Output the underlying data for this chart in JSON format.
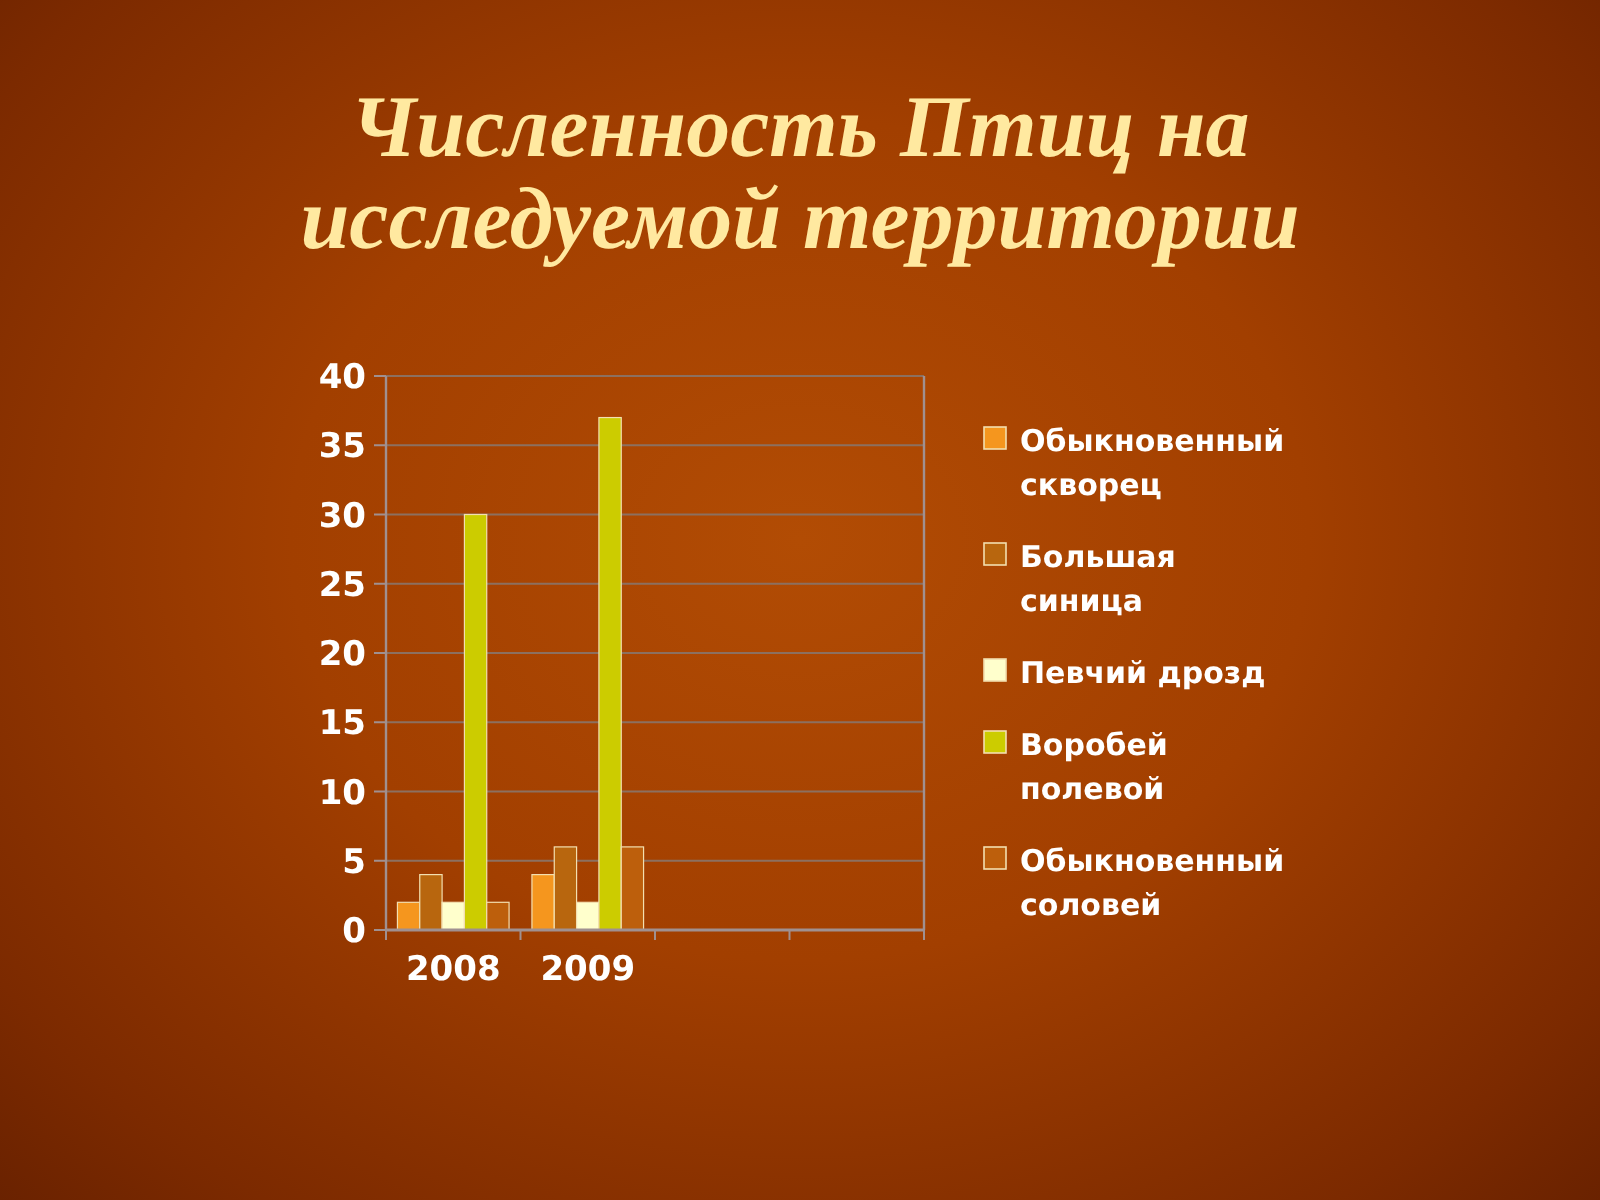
{
  "chart_data": {
    "type": "bar",
    "title": "Численность Птиц на исследуемой территории",
    "categories": [
      "2008",
      "2009",
      null,
      null
    ],
    "series": [
      {
        "name": "Обыкновенный скворец",
        "color": "#f5961e",
        "values": [
          2,
          4,
          null,
          null
        ]
      },
      {
        "name": "Большая синица",
        "color": "#b8660e",
        "values": [
          4,
          6,
          null,
          null
        ]
      },
      {
        "name": "Певчий дрозд",
        "color": "#ffffcc",
        "values": [
          2,
          2,
          null,
          null
        ]
      },
      {
        "name": "Воробей полевой",
        "color": "#cccc00",
        "values": [
          30,
          37,
          null,
          null
        ]
      },
      {
        "name": "Обыкновенный соловей",
        "color": "#bd5f0c",
        "values": [
          2,
          6,
          null,
          null
        ]
      }
    ],
    "ylim": [
      0,
      40
    ],
    "yticks": [
      0,
      5,
      10,
      15,
      20,
      25,
      30,
      35,
      40
    ],
    "grid": "y",
    "legend": "right"
  }
}
